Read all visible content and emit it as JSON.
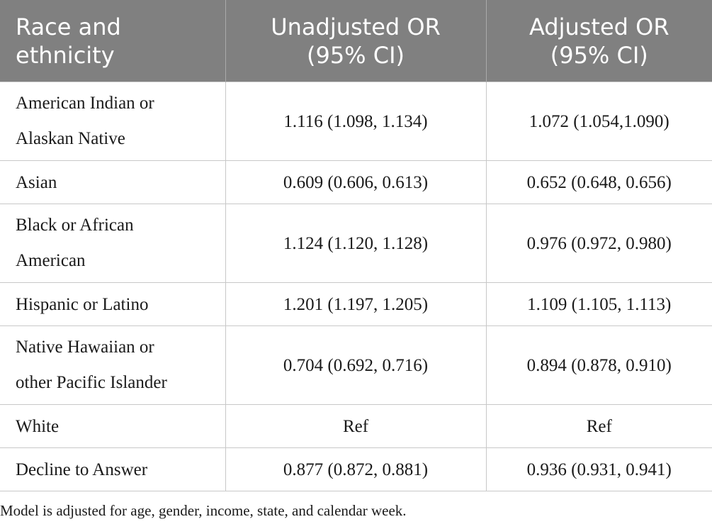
{
  "table": {
    "header": [
      "Race and ethnicity",
      "Unadjusted OR (95% CI)",
      "Adjusted OR (95% CI)"
    ],
    "rows": [
      [
        "American Indian or Alaskan Native",
        "1.116 (1.098, 1.134)",
        "1.072 (1.054,1.090)"
      ],
      [
        "Asian",
        "0.609 (0.606, 0.613)",
        "0.652 (0.648, 0.656)"
      ],
      [
        "Black or African American",
        "1.124 (1.120, 1.128)",
        "0.976 (0.972, 0.980)"
      ],
      [
        "Hispanic or Latino",
        "1.201 (1.197, 1.205)",
        "1.109 (1.105, 1.113)"
      ],
      [
        "Native Hawaiian or other Pacific Islander",
        "0.704 (0.692, 0.716)",
        "0.894 (0.878, 0.910)"
      ],
      [
        "White",
        "Ref",
        "Ref"
      ],
      [
        "Decline to Answer",
        "0.877 (0.872, 0.881)",
        "0.936 (0.931, 0.941)"
      ]
    ]
  },
  "footnote": "Model is adjusted for age, gender, income, state, and calendar week."
}
